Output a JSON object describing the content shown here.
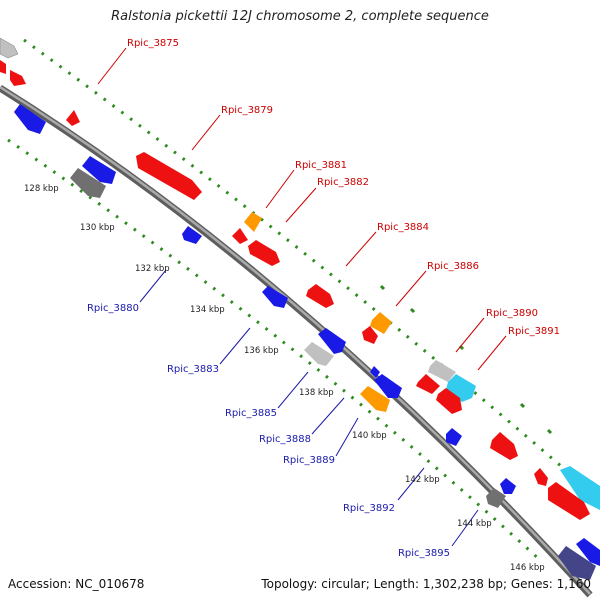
{
  "title": "Ralstonia pickettii 12J chromosome 2, complete sequence",
  "footer": {
    "accession_label": "Accession:",
    "accession": "NC_010678",
    "topology_label": "Topology:",
    "topology": "circular",
    "length_label": "Length:",
    "length": "1,302,238 bp",
    "genes_label": "Genes:",
    "genes": "1,160"
  },
  "colors": {
    "backbone": "#888888",
    "dotted_track": "#2e8b1f",
    "tick": "#2e8b1f",
    "label_forward": "#cc0000",
    "label_reverse": "#1a1aaa",
    "gene_red": "#ee1111",
    "gene_blue": "#1a1ae6",
    "gene_orange": "#ff9900",
    "gene_gray": "#c0c0c0",
    "gene_darkgray": "#707070",
    "gene_cyan": "#33ccee",
    "gene_navy": "#444488"
  },
  "kbp_ticks": [
    "128 kbp",
    "130 kbp",
    "132 kbp",
    "134 kbp",
    "136 kbp",
    "138 kbp",
    "140 kbp",
    "142 kbp",
    "144 kbp",
    "146 kbp"
  ],
  "gene_labels_forward": [
    "Rpic_3875",
    "Rpic_3879",
    "Rpic_3881",
    "Rpic_3882",
    "Rpic_3884",
    "Rpic_3886",
    "Rpic_3890",
    "Rpic_3891"
  ],
  "gene_labels_reverse": [
    "Rpic_3880",
    "Rpic_3883",
    "Rpic_3885",
    "Rpic_3888",
    "Rpic_3889",
    "Rpic_3892",
    "Rpic_3895"
  ]
}
